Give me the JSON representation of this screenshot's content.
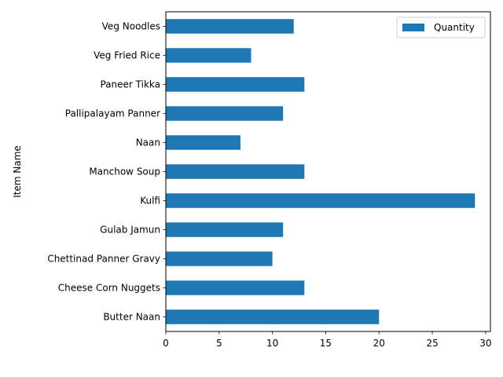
{
  "chart_data": {
    "type": "bar",
    "orientation": "horizontal",
    "categories": [
      "Butter Naan",
      "Cheese Corn Nuggets",
      "Chettinad Panner Gravy",
      "Gulab Jamun",
      "Kulfi",
      "Manchow Soup",
      "Naan",
      "Pallipalayam Panner",
      "Paneer Tikka",
      "Veg Fried Rice",
      "Veg Noodles"
    ],
    "series": [
      {
        "name": "Quantity",
        "values": [
          20,
          13,
          10,
          11,
          29,
          13,
          7,
          11,
          13,
          8,
          12
        ],
        "color": "#1f77b4"
      }
    ],
    "title": "",
    "xlabel": "",
    "ylabel": "Item Name",
    "xlim": [
      0,
      30.45
    ],
    "xticks": [
      0,
      5,
      10,
      15,
      20,
      25,
      30
    ],
    "grid": false,
    "legend": "top-right"
  }
}
